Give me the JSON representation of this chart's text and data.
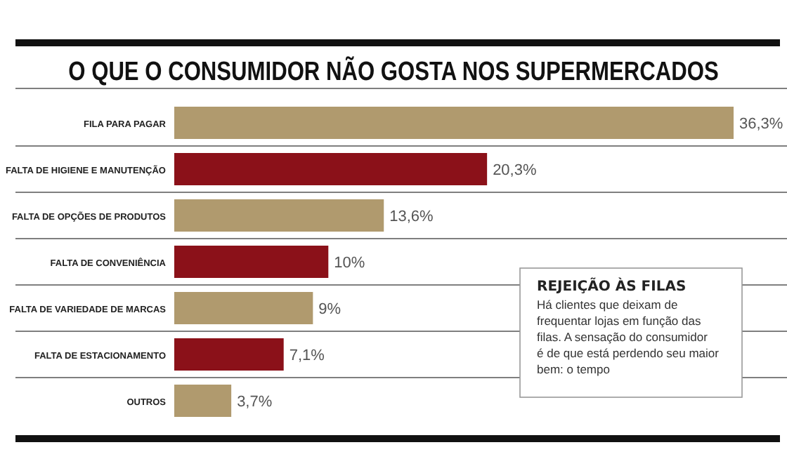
{
  "chart_data": {
    "type": "bar",
    "orientation": "horizontal",
    "title": "O QUE O CONSUMIDOR NÃO GOSTA NOS SUPERMERCADOS",
    "categories": [
      "FILA PARA PAGAR",
      "FALTA DE HIGIENE E MANUTENÇÃO",
      "FALTA DE OPÇÕES DE PRODUTOS",
      "FALTA DE CONVENIÊNCIA",
      "FALTA DE VARIEDADE DE MARCAS",
      "FALTA DE ESTACIONAMENTO",
      "OUTROS"
    ],
    "values": [
      36.3,
      20.3,
      13.6,
      10,
      9,
      7.1,
      3.7
    ],
    "value_labels": [
      "36,3%",
      "20,3%",
      "13,6%",
      "10%",
      "9%",
      "7,1%",
      "3,7%"
    ],
    "colors": [
      "#b09a6e",
      "#8b1119",
      "#b09a6e",
      "#8b1119",
      "#b09a6e",
      "#8b1119",
      "#b09a6e"
    ],
    "annotations": [
      "REJEIÇÃO ÀS FILAS",
      "Há clientes que deixam de frequentar lojas em função das filas. A sensação do consumidor é de que está perdendo seu maior bem: o tempo"
    ]
  }
}
